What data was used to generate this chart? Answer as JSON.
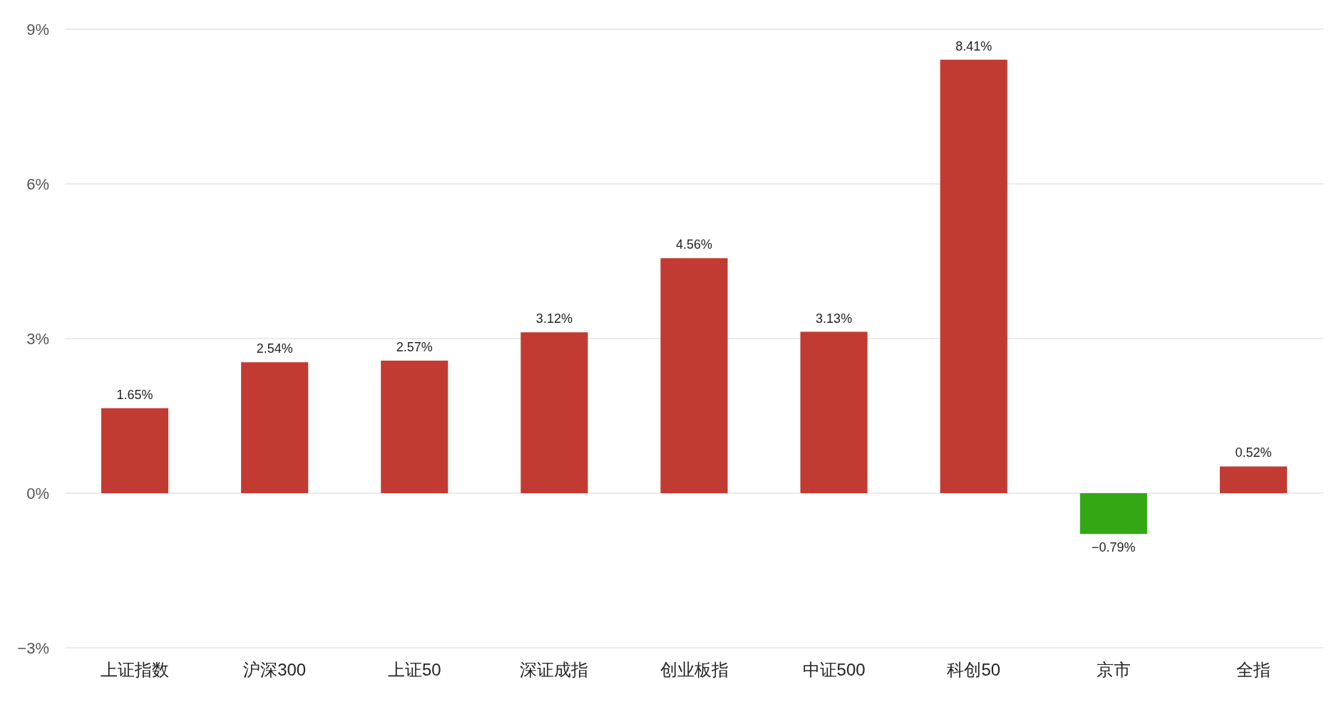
{
  "chart_data": {
    "type": "bar",
    "categories": [
      "上证指数",
      "沪深300",
      "上证50",
      "深证成指",
      "创业板指",
      "中证500",
      "科创50",
      "京市",
      "全指"
    ],
    "values": [
      1.65,
      2.54,
      2.57,
      3.12,
      4.56,
      3.13,
      8.41,
      -0.79,
      0.52
    ],
    "colors": [
      "#c23b32",
      "#c23b32",
      "#c23b32",
      "#c23b32",
      "#c23b32",
      "#c23b32",
      "#c23b32",
      "#34a814",
      "#c23b32"
    ],
    "value_labels": [
      "1.65%",
      "2.54%",
      "2.57%",
      "3.12%",
      "4.56%",
      "3.13%",
      "8.41%",
      "−0.79%",
      "0.52%"
    ],
    "ylim": [
      -3,
      9
    ],
    "yticks": [
      {
        "value": -3,
        "label": "−3%"
      },
      {
        "value": 0,
        "label": "0%"
      },
      {
        "value": 3,
        "label": "3%"
      },
      {
        "value": 6,
        "label": "6%"
      },
      {
        "value": 9,
        "label": "9%"
      }
    ],
    "grid": "y"
  }
}
